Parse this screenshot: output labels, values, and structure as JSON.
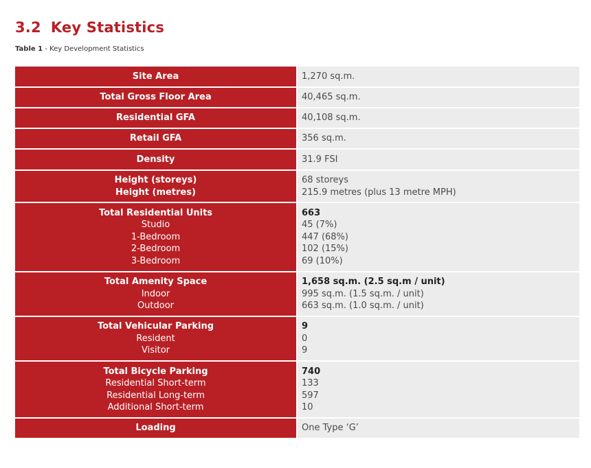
{
  "section": {
    "number": "3.2",
    "title": "Key Statistics"
  },
  "caption": {
    "label": "Table 1",
    "text": " - Key Development Statistics"
  },
  "rows": [
    {
      "key": [
        "Site Area"
      ],
      "value": [
        "1,270 sq.m."
      ]
    },
    {
      "key": [
        "Total Gross Floor Area"
      ],
      "value": [
        "40,465 sq.m."
      ]
    },
    {
      "key": [
        "Residential GFA"
      ],
      "value": [
        "40,108 sq.m."
      ]
    },
    {
      "key": [
        "Retail GFA"
      ],
      "value": [
        "356 sq.m."
      ]
    },
    {
      "key": [
        "Density"
      ],
      "value": [
        "31.9 FSI"
      ]
    },
    {
      "key": [
        "Height (storeys)",
        "Height (metres)"
      ],
      "value": [
        "68 storeys",
        "215.9 metres (plus 13 metre MPH)"
      ]
    },
    {
      "key": [
        "Total Residential Units",
        "Studio",
        "1-Bedroom",
        "2-Bedroom",
        "3-Bedroom"
      ],
      "value": [
        "663",
        "45 (7%)",
        "447 (68%)",
        "102 (15%)",
        "69 (10%)"
      ]
    },
    {
      "key": [
        "Total Amenity Space",
        "Indoor",
        "Outdoor"
      ],
      "value": [
        "1,658 sq.m. (2.5 sq.m / unit)",
        "995 sq.m. (1.5 sq.m. / unit)",
        "663 sq.m. (1.0 sq.m. / unit)"
      ]
    },
    {
      "key": [
        "Total Vehicular Parking",
        "Resident",
        "Visitor"
      ],
      "value": [
        "9",
        "0",
        "9"
      ]
    },
    {
      "key": [
        "Total Bicycle Parking",
        "Residential Short-term",
        "Residential Long-term",
        "Additional Short-term"
      ],
      "value": [
        "740",
        "133",
        "597",
        "10"
      ]
    },
    {
      "key": [
        "Loading"
      ],
      "value": [
        "One Type ‘G’"
      ]
    }
  ]
}
